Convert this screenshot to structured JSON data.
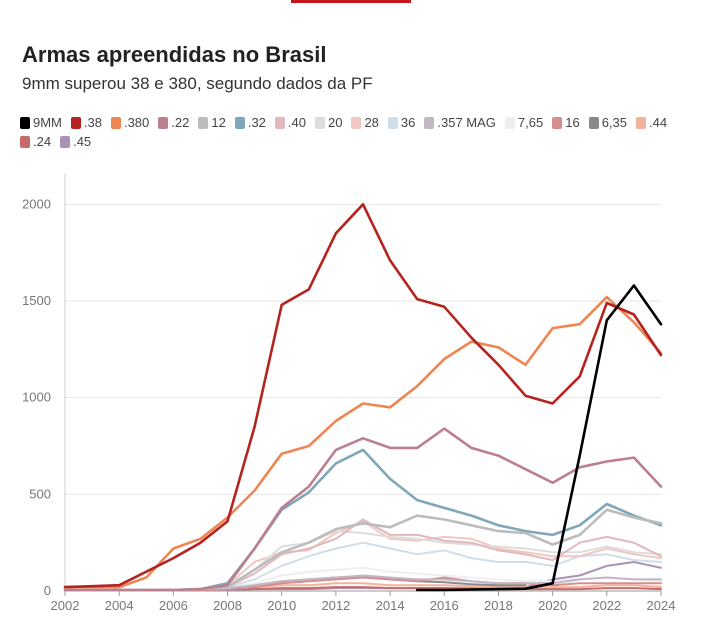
{
  "header": {
    "title": "Armas apreendidas no Brasil",
    "subtitle": "9mm superou 38 e 380, segundo dados da PF"
  },
  "chart_data": {
    "type": "line",
    "title": "Armas apreendidas no Brasil",
    "subtitle": "9mm superou 38 e 380, segundo dados da PF",
    "xlabel": "",
    "ylabel": "",
    "xlim": [
      2002,
      2024
    ],
    "ylim": [
      0,
      2100
    ],
    "x_ticks": [
      2002,
      2004,
      2006,
      2008,
      2010,
      2012,
      2014,
      2016,
      2018,
      2020,
      2022,
      2024
    ],
    "y_ticks": [
      0,
      500,
      1000,
      1500,
      2000
    ],
    "grid": true,
    "legend_position": "top",
    "series": [
      {
        "name": "9MM",
        "color": "#000000",
        "x": [
          2015,
          2016,
          2017,
          2018,
          2019,
          2020,
          2021,
          2022,
          2023,
          2024
        ],
        "values": [
          5,
          5,
          8,
          10,
          12,
          40,
          700,
          1400,
          1580,
          1380
        ]
      },
      {
        "name": ".38",
        "color": "#b5231f",
        "x": [
          2002,
          2003,
          2004,
          2005,
          2006,
          2007,
          2008,
          2009,
          2010,
          2011,
          2012,
          2013,
          2014,
          2015,
          2016,
          2017,
          2018,
          2019,
          2020,
          2021,
          2022,
          2023,
          2024
        ],
        "values": [
          20,
          25,
          30,
          100,
          170,
          250,
          360,
          850,
          1480,
          1560,
          1850,
          2000,
          1710,
          1510,
          1470,
          1310,
          1170,
          1010,
          970,
          1110,
          1490,
          1430,
          1220
        ]
      },
      {
        "name": ".380",
        "color": "#ee8654",
        "x": [
          2002,
          2003,
          2004,
          2005,
          2006,
          2007,
          2008,
          2009,
          2010,
          2011,
          2012,
          2013,
          2014,
          2015,
          2016,
          2017,
          2018,
          2019,
          2020,
          2021,
          2022,
          2023,
          2024
        ],
        "values": [
          20,
          20,
          20,
          70,
          220,
          270,
          380,
          520,
          710,
          750,
          880,
          970,
          950,
          1060,
          1200,
          1290,
          1260,
          1170,
          1360,
          1380,
          1520,
          1390,
          1230
        ]
      },
      {
        "name": ".22",
        "color": "#bc7f8f",
        "x": [
          2002,
          2003,
          2004,
          2005,
          2006,
          2007,
          2008,
          2009,
          2010,
          2011,
          2012,
          2013,
          2014,
          2015,
          2016,
          2017,
          2018,
          2019,
          2020,
          2021,
          2022,
          2023,
          2024
        ],
        "values": [
          5,
          5,
          5,
          5,
          5,
          10,
          30,
          220,
          430,
          540,
          730,
          790,
          740,
          740,
          840,
          740,
          700,
          630,
          560,
          640,
          670,
          690,
          540
        ]
      },
      {
        "name": "12",
        "color": "#bcbcbc",
        "x": [
          2002,
          2003,
          2004,
          2005,
          2006,
          2007,
          2008,
          2009,
          2010,
          2011,
          2012,
          2013,
          2014,
          2015,
          2016,
          2017,
          2018,
          2019,
          2020,
          2021,
          2022,
          2023,
          2024
        ],
        "values": [
          5,
          5,
          5,
          5,
          5,
          10,
          20,
          110,
          200,
          250,
          320,
          350,
          330,
          390,
          370,
          340,
          310,
          300,
          240,
          290,
          420,
          380,
          350
        ]
      },
      {
        "name": ".32",
        "color": "#7fa6b9",
        "x": [
          2002,
          2003,
          2004,
          2005,
          2006,
          2007,
          2008,
          2009,
          2010,
          2011,
          2012,
          2013,
          2014,
          2015,
          2016,
          2017,
          2018,
          2019,
          2020,
          2021,
          2022,
          2023,
          2024
        ],
        "values": [
          5,
          5,
          5,
          5,
          5,
          10,
          40,
          220,
          420,
          510,
          660,
          730,
          580,
          470,
          430,
          390,
          340,
          310,
          290,
          340,
          450,
          390,
          340
        ]
      },
      {
        "name": ".40",
        "color": "#e2b8be",
        "x": [
          2002,
          2003,
          2004,
          2005,
          2006,
          2007,
          2008,
          2009,
          2010,
          2011,
          2012,
          2013,
          2014,
          2015,
          2016,
          2017,
          2018,
          2019,
          2020,
          2021,
          2022,
          2023,
          2024
        ],
        "values": [
          5,
          5,
          5,
          5,
          5,
          10,
          20,
          90,
          190,
          220,
          270,
          370,
          290,
          290,
          260,
          250,
          210,
          190,
          160,
          250,
          280,
          250,
          180
        ]
      },
      {
        "name": "20",
        "color": "#dddddd",
        "x": [
          2002,
          2003,
          2004,
          2005,
          2006,
          2007,
          2008,
          2009,
          2010,
          2011,
          2012,
          2013,
          2014,
          2015,
          2016,
          2017,
          2018,
          2019,
          2020,
          2021,
          2022,
          2023,
          2024
        ],
        "values": [
          5,
          5,
          5,
          5,
          5,
          10,
          30,
          110,
          230,
          250,
          310,
          300,
          280,
          270,
          250,
          240,
          230,
          220,
          200,
          200,
          230,
          200,
          190
        ]
      },
      {
        "name": "28",
        "color": "#f0c8c2",
        "x": [
          2002,
          2003,
          2004,
          2005,
          2006,
          2007,
          2008,
          2009,
          2010,
          2011,
          2012,
          2013,
          2014,
          2015,
          2016,
          2017,
          2018,
          2019,
          2020,
          2021,
          2022,
          2023,
          2024
        ],
        "values": [
          5,
          5,
          5,
          5,
          5,
          10,
          30,
          150,
          200,
          210,
          300,
          360,
          270,
          260,
          280,
          270,
          220,
          200,
          180,
          180,
          220,
          190,
          170
        ]
      },
      {
        "name": "36",
        "color": "#cfdee8",
        "x": [
          2002,
          2003,
          2004,
          2005,
          2006,
          2007,
          2008,
          2009,
          2010,
          2011,
          2012,
          2013,
          2014,
          2015,
          2016,
          2017,
          2018,
          2019,
          2020,
          2021,
          2022,
          2023,
          2024
        ],
        "values": [
          5,
          5,
          5,
          5,
          5,
          10,
          20,
          60,
          130,
          180,
          220,
          250,
          220,
          190,
          210,
          170,
          150,
          150,
          130,
          180,
          190,
          160,
          150
        ]
      },
      {
        "name": ".357 MAG",
        "color": "#c3b6c4",
        "x": [
          2002,
          2003,
          2004,
          2005,
          2006,
          2007,
          2008,
          2009,
          2010,
          2011,
          2012,
          2013,
          2014,
          2015,
          2016,
          2017,
          2018,
          2019,
          2020,
          2021,
          2022,
          2023,
          2024
        ],
        "values": [
          5,
          5,
          5,
          5,
          5,
          10,
          15,
          30,
          50,
          60,
          70,
          80,
          70,
          60,
          60,
          50,
          40,
          40,
          40,
          60,
          70,
          60,
          60
        ]
      },
      {
        "name": "7,65",
        "color": "#efefef",
        "x": [
          2002,
          2003,
          2004,
          2005,
          2006,
          2007,
          2008,
          2009,
          2010,
          2011,
          2012,
          2013,
          2014,
          2015,
          2016,
          2017,
          2018,
          2019,
          2020,
          2021,
          2022,
          2023,
          2024
        ],
        "values": [
          5,
          5,
          5,
          5,
          5,
          10,
          20,
          40,
          80,
          100,
          110,
          120,
          100,
          90,
          80,
          70,
          60,
          50,
          50,
          60,
          70,
          60,
          50
        ]
      },
      {
        "name": "16",
        "color": "#d58d8d",
        "x": [
          2002,
          2003,
          2004,
          2005,
          2006,
          2007,
          2008,
          2009,
          2010,
          2011,
          2012,
          2013,
          2014,
          2015,
          2016,
          2017,
          2018,
          2019,
          2020,
          2021,
          2022,
          2023,
          2024
        ],
        "values": [
          5,
          5,
          5,
          5,
          5,
          5,
          10,
          20,
          40,
          50,
          60,
          70,
          60,
          50,
          70,
          50,
          40,
          40,
          30,
          40,
          40,
          40,
          40
        ]
      },
      {
        "name": "6,35",
        "color": "#8a8a8a",
        "x": [
          2002,
          2003,
          2004,
          2005,
          2006,
          2007,
          2008,
          2009,
          2010,
          2011,
          2012,
          2013,
          2014,
          2015,
          2016,
          2017,
          2018,
          2019
        ],
        "values": [
          5,
          5,
          5,
          5,
          5,
          10,
          20,
          30,
          50,
          60,
          70,
          75,
          60,
          50,
          45,
          35,
          30,
          30
        ]
      },
      {
        "name": ".44",
        "color": "#f4b29a",
        "x": [
          2002,
          2003,
          2004,
          2005,
          2006,
          2007,
          2008,
          2009,
          2010,
          2011,
          2012,
          2013,
          2014,
          2015,
          2016,
          2017,
          2018,
          2019,
          2020,
          2021,
          2022,
          2023,
          2024
        ],
        "values": [
          5,
          5,
          5,
          5,
          5,
          5,
          10,
          20,
          30,
          30,
          40,
          40,
          30,
          30,
          30,
          25,
          20,
          20,
          20,
          20,
          30,
          30,
          20
        ]
      },
      {
        "name": ".24",
        "color": "#c86a6a",
        "x": [
          2002,
          2003,
          2004,
          2005,
          2006,
          2007,
          2008,
          2009,
          2010,
          2011,
          2012,
          2013,
          2014,
          2015,
          2016,
          2017,
          2018,
          2019,
          2020,
          2021,
          2022,
          2023,
          2024
        ],
        "values": [
          5,
          5,
          5,
          5,
          5,
          5,
          10,
          10,
          15,
          15,
          20,
          20,
          15,
          15,
          15,
          10,
          10,
          10,
          10,
          10,
          15,
          15,
          10
        ]
      },
      {
        "name": ".45",
        "color": "#a993b5",
        "x": [
          2002,
          2003,
          2004,
          2005,
          2006,
          2007,
          2008,
          2009,
          2010,
          2011,
          2012,
          2013,
          2014,
          2015,
          2016,
          2017,
          2018,
          2019,
          2020,
          2021,
          2022,
          2023,
          2024
        ],
        "values": [
          5,
          5,
          5,
          5,
          5,
          5,
          5,
          10,
          10,
          10,
          15,
          15,
          15,
          15,
          15,
          15,
          20,
          20,
          60,
          80,
          130,
          150,
          120
        ]
      }
    ]
  }
}
